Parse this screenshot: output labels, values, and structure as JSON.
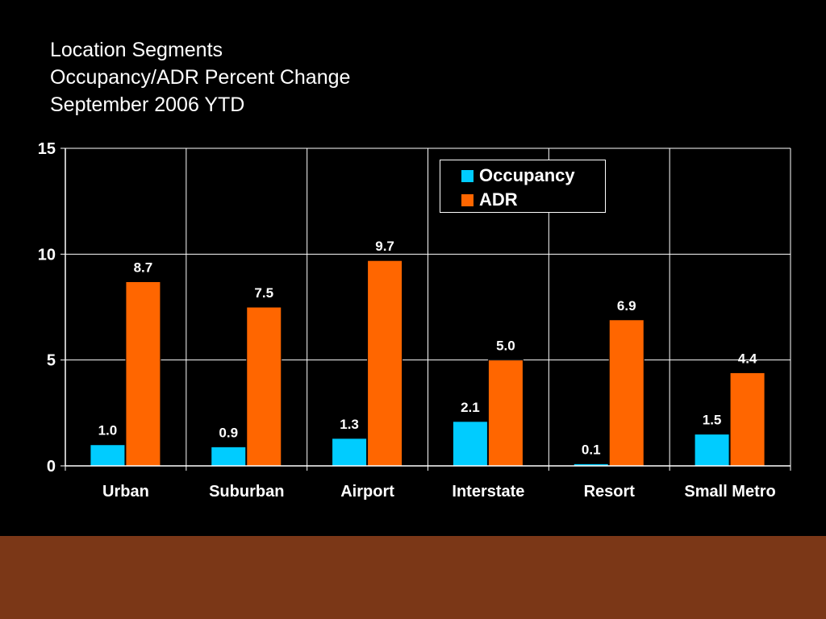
{
  "title_lines": [
    "Location Segments",
    "Occupancy/ADR Percent Change",
    "September 2006 YTD"
  ],
  "colors": {
    "background": "#000000",
    "footer_band": "#7b3717",
    "grid": "#ffffff",
    "text": "#ffffff"
  },
  "chart_data": {
    "type": "bar",
    "categories": [
      "Urban",
      "Suburban",
      "Airport",
      "Interstate",
      "Resort",
      "Small Metro"
    ],
    "series": [
      {
        "name": "Occupancy",
        "color": "#00ccff",
        "values": [
          1.0,
          0.9,
          1.3,
          2.1,
          0.1,
          1.5
        ]
      },
      {
        "name": "ADR",
        "color": "#ff6600",
        "values": [
          8.7,
          7.5,
          9.7,
          5.0,
          6.9,
          4.4
        ]
      }
    ],
    "ylim": [
      0,
      15
    ],
    "yticks": [
      0,
      5,
      10,
      15
    ],
    "grid": true,
    "legend_position": "top-right",
    "title": "Location Segments Occupancy/ADR Percent Change September 2006 YTD",
    "xlabel": "",
    "ylabel": ""
  }
}
